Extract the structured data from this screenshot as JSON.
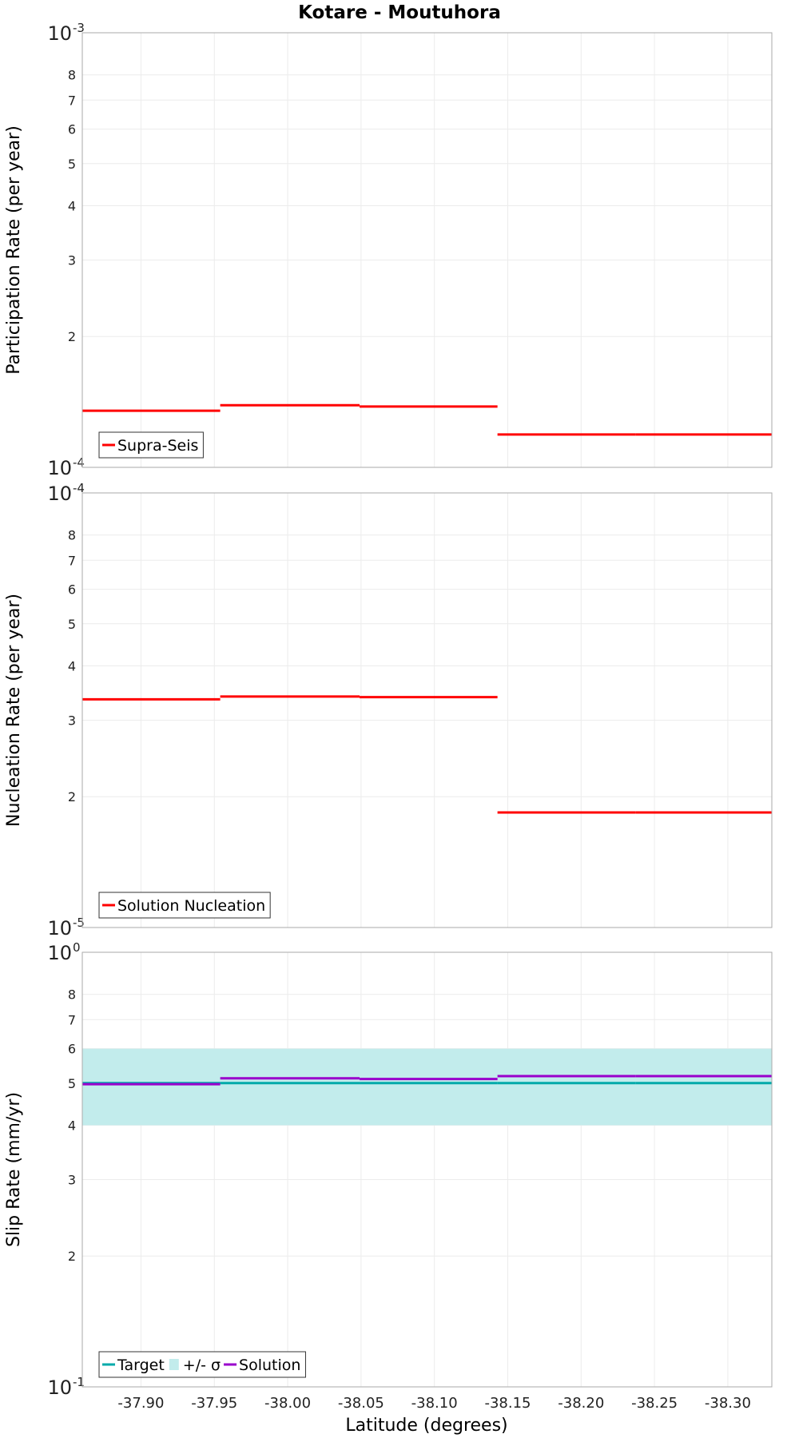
{
  "chart_data": {
    "title": "Kotare - Moutuhora",
    "xlabel": "Latitude (degrees)",
    "type": "line",
    "x_domain": [
      -37.86,
      -38.33
    ],
    "x_ticks": [
      -37.9,
      -37.95,
      -38.0,
      -38.05,
      -38.1,
      -38.15,
      -38.2,
      -38.25,
      -38.3
    ],
    "x_tick_labels": [
      "-37.90",
      "-37.95",
      "-38.00",
      "-38.05",
      "-38.10",
      "-38.15",
      "-38.20",
      "-38.25",
      "-38.30"
    ],
    "segment_boundaries": [
      -37.86,
      -37.954,
      -38.049,
      -38.143,
      -38.237,
      -38.33
    ],
    "panels": [
      {
        "ylabel": "Participation Rate (per year)",
        "yscale": "log",
        "ylim": [
          0.0001,
          0.001
        ],
        "decade_labels": [
          {
            "base": "10",
            "exp": "-3"
          },
          {
            "base": "10",
            "exp": "-4"
          }
        ],
        "y_minor_ticks": [
          2,
          3,
          4,
          5,
          6,
          7,
          8
        ],
        "y_minor_labels": [
          "2",
          "3",
          "4",
          "5",
          "6",
          "7",
          "8"
        ],
        "legend": [
          {
            "label": "Supra-Seis",
            "color": "#ff0000",
            "kind": "line"
          }
        ],
        "series": [
          {
            "name": "Supra-Seis",
            "color": "#ff0000",
            "values": [
              0.000135,
              0.000139,
              0.000138,
              0.000119,
              0.000119
            ]
          }
        ]
      },
      {
        "ylabel": "Nucleation Rate (per year)",
        "yscale": "log",
        "ylim": [
          1e-05,
          0.0001
        ],
        "decade_labels": [
          {
            "base": "10",
            "exp": "-4"
          },
          {
            "base": "10",
            "exp": "-5"
          }
        ],
        "y_minor_ticks": [
          2,
          3,
          4,
          5,
          6,
          7,
          8
        ],
        "y_minor_labels": [
          "2",
          "3",
          "4",
          "5",
          "6",
          "7",
          "8"
        ],
        "legend": [
          {
            "label": "Solution Nucleation",
            "color": "#ff0000",
            "kind": "line"
          }
        ],
        "series": [
          {
            "name": "Solution Nucleation",
            "color": "#ff0000",
            "values": [
              3.35e-05,
              3.4e-05,
              3.39e-05,
              1.84e-05,
              1.84e-05
            ]
          }
        ]
      },
      {
        "ylabel": "Slip Rate (mm/yr)",
        "yscale": "log",
        "ylim": [
          0.1,
          1
        ],
        "decade_labels": [
          {
            "base": "10",
            "exp": "0"
          },
          {
            "base": "10",
            "exp": "-1"
          }
        ],
        "y_minor_ticks": [
          2,
          3,
          4,
          5,
          6,
          7,
          8
        ],
        "y_minor_labels": [
          "2",
          "3",
          "4",
          "5",
          "6",
          "7",
          "8"
        ],
        "legend": [
          {
            "label": "Target",
            "color": "#00aaaa",
            "kind": "line"
          },
          {
            "label": "+/- σ",
            "color": "#c2ecec",
            "kind": "band"
          },
          {
            "label": "Solution",
            "color": "#9900cc",
            "kind": "line"
          }
        ],
        "band": {
          "name": "+/- σ",
          "color": "#c2ecec",
          "low": 0.4,
          "high": 0.6
        },
        "series": [
          {
            "name": "Target",
            "color": "#00aaaa",
            "values": [
              0.5,
              0.5,
              0.5,
              0.5,
              0.5
            ]
          },
          {
            "name": "Solution",
            "color": "#9900cc",
            "values": [
              0.497,
              0.513,
              0.511,
              0.519,
              0.519
            ]
          }
        ]
      }
    ]
  }
}
